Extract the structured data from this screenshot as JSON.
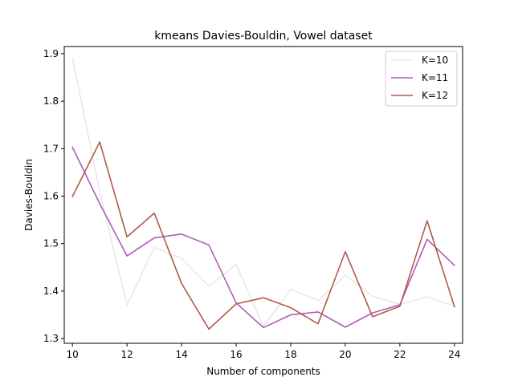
{
  "chart_data": {
    "type": "line",
    "title": "kmeans Davies-Bouldin, Vowel dataset",
    "xlabel": "Number of components",
    "ylabel": "Davies-Bouldin",
    "xlim": [
      9.7,
      24.3
    ],
    "ylim": [
      1.29,
      1.915
    ],
    "xticks": [
      10,
      12,
      14,
      16,
      18,
      20,
      22,
      24
    ],
    "yticks": [
      1.3,
      1.4,
      1.5,
      1.6,
      1.7,
      1.8,
      1.9
    ],
    "grid": false,
    "legend_position": "top-right",
    "x": [
      10,
      11,
      12,
      13,
      14,
      15,
      16,
      17,
      18,
      19,
      20,
      21,
      22,
      23,
      24
    ],
    "series": [
      {
        "name": "K=10",
        "color": "#e8e8e8",
        "values": [
          1.891,
          1.61,
          1.37,
          1.492,
          1.469,
          1.41,
          1.456,
          1.325,
          1.404,
          1.38,
          1.433,
          1.389,
          1.372,
          1.388,
          1.368
        ]
      },
      {
        "name": "K=11",
        "color": "#b05cb8",
        "values": [
          1.703,
          1.584,
          1.474,
          1.512,
          1.52,
          1.497,
          1.375,
          1.323,
          1.35,
          1.356,
          1.324,
          1.354,
          1.371,
          1.509,
          1.454
        ]
      },
      {
        "name": "K=12",
        "color": "#b05a4a",
        "values": [
          1.599,
          1.714,
          1.514,
          1.564,
          1.416,
          1.32,
          1.373,
          1.386,
          1.365,
          1.331,
          1.483,
          1.346,
          1.368,
          1.548,
          1.367
        ]
      }
    ]
  }
}
